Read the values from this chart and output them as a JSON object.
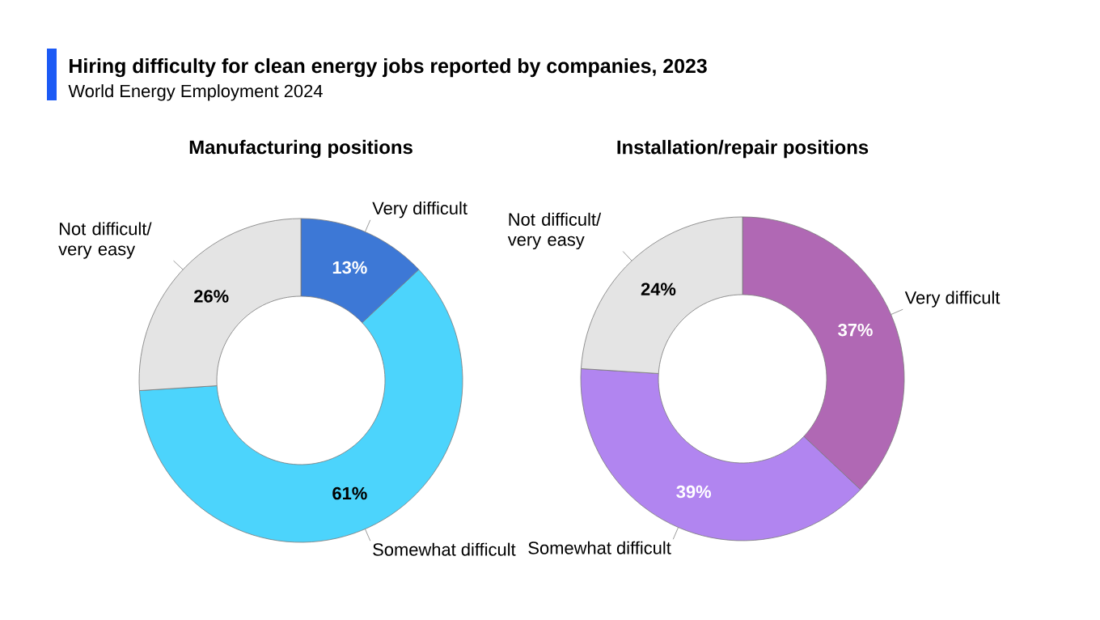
{
  "chart_data": [
    {
      "type": "donut",
      "title": "Manufacturing positions",
      "annotations": [
        "Hiring difficulty for clean energy jobs reported by companies, 2023",
        "World Energy Employment 2024"
      ],
      "categories": [
        "Very difficult",
        "Somewhat difficult",
        "Not difficult/ very easy"
      ],
      "values": [
        13,
        61,
        26
      ],
      "colors": [
        "#3d78d6",
        "#4cd4fc",
        "#e4e4e4"
      ],
      "value_labels": [
        "13%",
        "61%",
        "26%"
      ]
    },
    {
      "type": "donut",
      "title": "Installation/repair positions",
      "categories": [
        "Very difficult",
        "Somewhat difficult",
        "Not difficult/ very easy"
      ],
      "values": [
        37,
        39,
        24
      ],
      "colors": [
        "#b068b4",
        "#b185f0",
        "#e4e4e4"
      ],
      "value_labels": [
        "37%",
        "39%",
        "24%"
      ]
    }
  ]
}
